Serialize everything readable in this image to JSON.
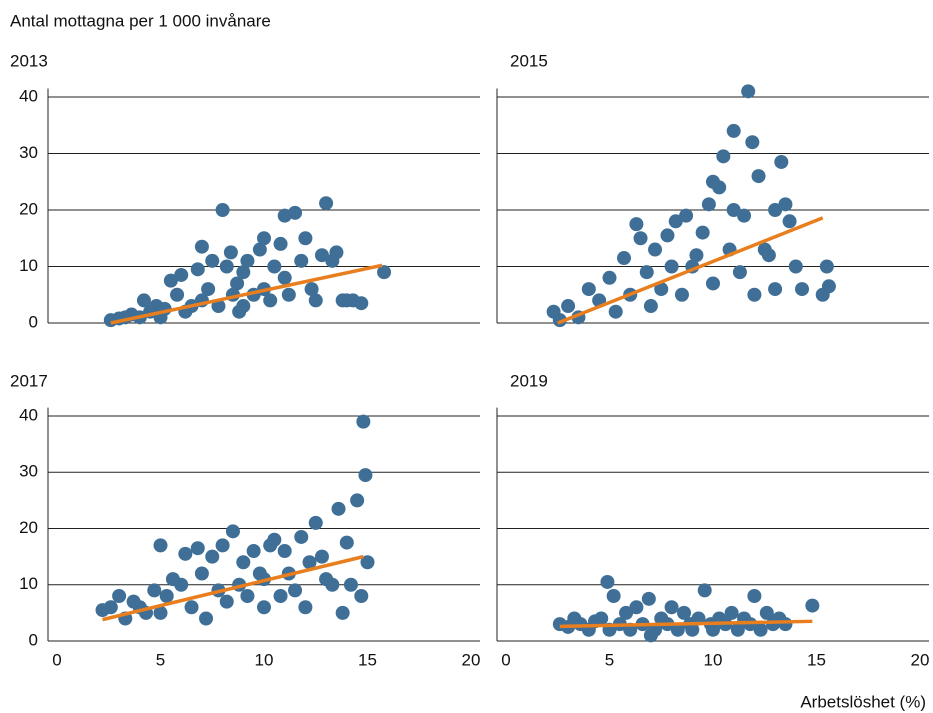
{
  "title": "Antal mottagna per 1 000 invånare",
  "x_label": "Arbetslöshet (%)",
  "chart_data": [
    {
      "type": "scatter",
      "title": "2013",
      "xlim": [
        0,
        20
      ],
      "ylim": [
        0,
        41.5
      ],
      "yticks": [
        0,
        10,
        20,
        30,
        40
      ],
      "show_ytick_labels": true,
      "grid": true,
      "points": {
        "color": "#3f6f96",
        "x": [
          2.6,
          3,
          3.3,
          3.6,
          4,
          4.2,
          4.5,
          4.8,
          5,
          5.2,
          5.5,
          5.8,
          6,
          6.2,
          6.5,
          6.8,
          7,
          7,
          7.3,
          7.5,
          7.8,
          8,
          8.2,
          8.4,
          8.5,
          8.7,
          8.8,
          9,
          9,
          9.2,
          9.5,
          9.8,
          10,
          10,
          10.3,
          10.5,
          10.8,
          11,
          11,
          11.2,
          11.5,
          11.8,
          12,
          12.3,
          12.5,
          12.8,
          13,
          13.3,
          13.5,
          13.8,
          14,
          14.3,
          14.7,
          15.8
        ],
        "y": [
          0.5,
          0.8,
          1,
          1.5,
          1,
          4,
          2,
          3,
          1,
          2.5,
          7.5,
          5,
          8.5,
          2,
          3,
          9.5,
          13.5,
          4,
          6,
          11,
          3,
          20,
          10,
          12.5,
          5,
          7,
          2,
          9,
          3,
          11,
          5,
          13,
          15,
          6,
          4,
          10,
          14,
          19,
          8,
          5,
          19.5,
          11,
          15,
          6,
          4,
          12,
          21.2,
          11,
          12.5,
          4,
          4,
          4,
          3.5,
          9
        ]
      },
      "trend": {
        "color": "#e87e1e",
        "x": [
          2.6,
          15.7
        ],
        "y": [
          0,
          10.2
        ]
      }
    },
    {
      "type": "scatter",
      "title": "2015",
      "xlim": [
        0,
        20
      ],
      "ylim": [
        0,
        41.5
      ],
      "yticks": [
        0,
        10,
        20,
        30,
        40
      ],
      "show_ytick_labels": false,
      "grid": true,
      "points": {
        "color": "#3f6f96",
        "x": [
          2.3,
          2.6,
          3,
          3.5,
          4,
          4.5,
          5,
          5.3,
          5.7,
          6,
          6.3,
          6.5,
          6.8,
          7,
          7.2,
          7.5,
          7.8,
          8,
          8.2,
          8.5,
          8.7,
          9,
          9.2,
          9.5,
          9.8,
          10,
          10,
          10.3,
          10.5,
          10.8,
          11,
          11,
          11.3,
          11.5,
          11.7,
          11.9,
          12,
          12.2,
          12.5,
          12.7,
          13,
          13,
          13.3,
          13.5,
          13.7,
          14,
          14.3,
          15.3,
          15.5,
          15.6
        ],
        "y": [
          2,
          0.5,
          3,
          1,
          6,
          4,
          8,
          2,
          11.5,
          5,
          17.5,
          15,
          9,
          3,
          13,
          6,
          15.5,
          10,
          18,
          5,
          19,
          10,
          12,
          16,
          21,
          25,
          7,
          24,
          29.5,
          13,
          34,
          20,
          9,
          19,
          41,
          32,
          5,
          26,
          13,
          12,
          20,
          6,
          28.5,
          21,
          18,
          10,
          6,
          5,
          10,
          6.5
        ]
      },
      "trend": {
        "color": "#e87e1e",
        "x": [
          2.5,
          15.3
        ],
        "y": [
          0,
          18.6
        ]
      }
    },
    {
      "type": "scatter",
      "title": "2017",
      "xlim": [
        0,
        20
      ],
      "ylim": [
        0,
        41.5
      ],
      "xticks": [
        0,
        5,
        10,
        15,
        20
      ],
      "yticks": [
        0,
        10,
        20,
        30,
        40
      ],
      "show_ytick_labels": true,
      "grid": true,
      "points": {
        "color": "#3f6f96",
        "x": [
          2.2,
          2.6,
          3,
          3.3,
          3.7,
          4,
          4.3,
          4.7,
          5,
          5,
          5.3,
          5.6,
          6,
          6.2,
          6.5,
          6.8,
          7,
          7.2,
          7.5,
          7.8,
          8,
          8.2,
          8.5,
          8.8,
          9,
          9.2,
          9.5,
          9.8,
          10,
          10,
          10.3,
          10.5,
          10.8,
          11,
          11.2,
          11.5,
          11.8,
          12,
          12.2,
          12.5,
          12.8,
          13,
          13.3,
          13.6,
          13.8,
          14,
          14.2,
          14.5,
          14.7,
          14.8,
          14.9,
          15
        ],
        "y": [
          5.5,
          6,
          8,
          4,
          7,
          6,
          5,
          9,
          17,
          5,
          8,
          11,
          10,
          15.5,
          6,
          16.5,
          12,
          4,
          15,
          9,
          17,
          7,
          19.5,
          10,
          14,
          8,
          16,
          12,
          6,
          11,
          17,
          18,
          8,
          16,
          12,
          9,
          18.5,
          6,
          14,
          21,
          15,
          11,
          10,
          23.5,
          5,
          17.5,
          10,
          25,
          8,
          39,
          29.5,
          14
        ]
      },
      "trend": {
        "color": "#e87e1e",
        "x": [
          2.2,
          14.8
        ],
        "y": [
          3.8,
          15
        ]
      }
    },
    {
      "type": "scatter",
      "title": "2019",
      "xlim": [
        0,
        20
      ],
      "ylim": [
        0,
        41.5
      ],
      "xticks": [
        0,
        5,
        10,
        15,
        20
      ],
      "yticks": [
        0,
        10,
        20,
        30,
        40
      ],
      "show_ytick_labels": false,
      "grid": true,
      "points": {
        "color": "#3f6f96",
        "x": [
          2.6,
          3,
          3.3,
          3.6,
          4,
          4.3,
          4.6,
          4.9,
          5,
          5.2,
          5.5,
          5.8,
          6,
          6.3,
          6.6,
          6.9,
          7,
          7.2,
          7.5,
          7.8,
          8,
          8.3,
          8.6,
          8.9,
          9,
          9.3,
          9.6,
          9.9,
          10,
          10.3,
          10.6,
          10.9,
          11.2,
          11.5,
          11.8,
          12,
          12.3,
          12.6,
          12.9,
          13.2,
          13.5,
          14.8
        ],
        "y": [
          3,
          2.5,
          4,
          3,
          2,
          3.5,
          4,
          10.5,
          2,
          8,
          3,
          5,
          2,
          6,
          3,
          7.5,
          1,
          2,
          4,
          3,
          6,
          2,
          5,
          3,
          2,
          4,
          9,
          3,
          2,
          4,
          3,
          5,
          2,
          4,
          3,
          8,
          2,
          5,
          3,
          4,
          3,
          6.3
        ]
      },
      "trend": {
        "color": "#e87e1e",
        "x": [
          2.6,
          14.8
        ],
        "y": [
          2.6,
          3.5
        ]
      }
    }
  ]
}
